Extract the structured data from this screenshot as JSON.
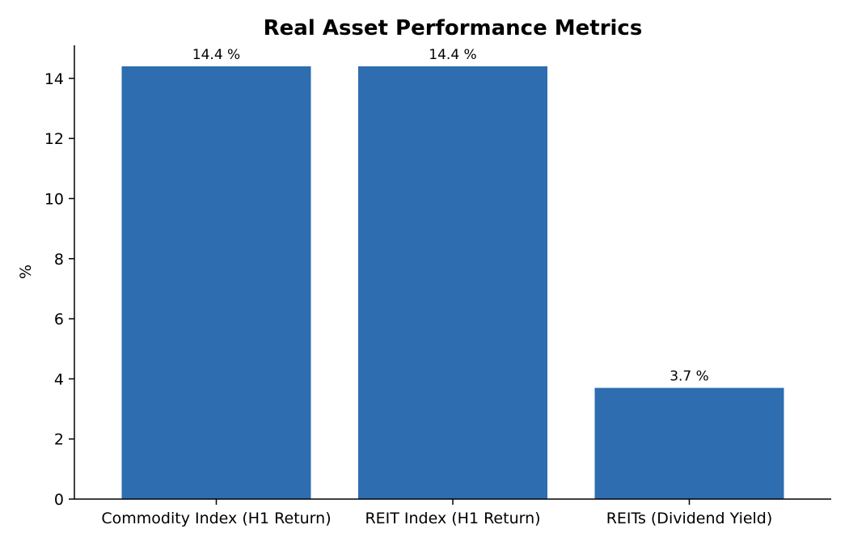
{
  "chart_data": {
    "type": "bar",
    "title": "Real Asset Performance Metrics",
    "xlabel": "",
    "ylabel": "%",
    "categories": [
      "Commodity Index (H1 Return)",
      "REIT Index (H1 Return)",
      "REITs (Dividend Yield)"
    ],
    "values": [
      14.4,
      14.4,
      3.7
    ],
    "data_labels": [
      "14.4 %",
      "14.4 %",
      "3.7 %"
    ],
    "yticks": [
      0,
      2,
      4,
      6,
      8,
      10,
      12,
      14
    ],
    "ylim": [
      0,
      15.1
    ],
    "grid": false,
    "bar_color": "#2d6db0"
  }
}
